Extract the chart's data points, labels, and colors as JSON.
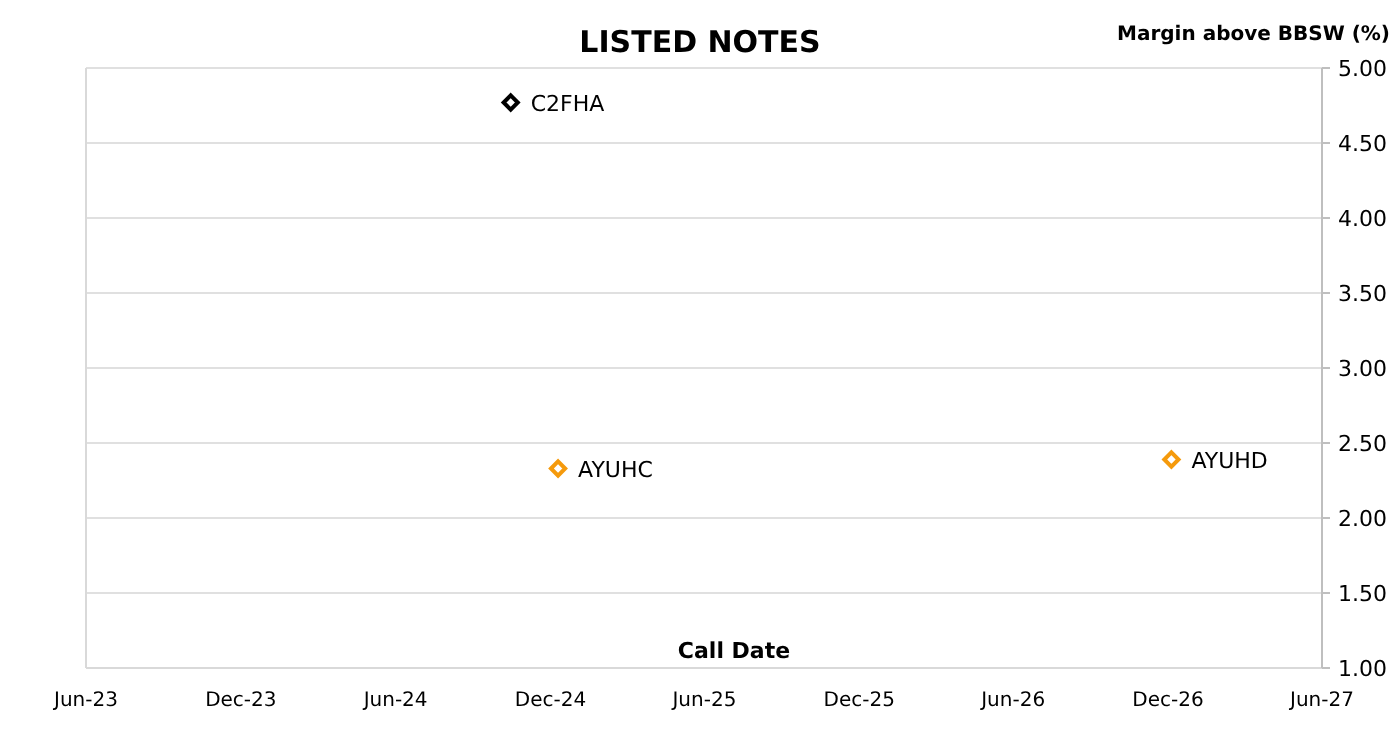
{
  "chart_data": {
    "type": "scatter",
    "title": "LISTED NOTES",
    "xlabel": "Call Date",
    "ylabel": "Margin above BBSW (%)",
    "xlim": [
      "2023-06-01",
      "2027-06-01"
    ],
    "xticks": [
      {
        "value": "2023-06-01",
        "label": "Jun-23"
      },
      {
        "value": "2023-12-01",
        "label": "Dec-23"
      },
      {
        "value": "2024-06-01",
        "label": "Jun-24"
      },
      {
        "value": "2024-12-01",
        "label": "Dec-24"
      },
      {
        "value": "2025-06-01",
        "label": "Jun-25"
      },
      {
        "value": "2025-12-01",
        "label": "Dec-25"
      },
      {
        "value": "2026-06-01",
        "label": "Jun-26"
      },
      {
        "value": "2026-12-01",
        "label": "Dec-26"
      },
      {
        "value": "2027-06-01",
        "label": "Jun-27"
      }
    ],
    "ylim": [
      1,
      5
    ],
    "yticks": [
      {
        "value": 1,
        "label": "1.00"
      },
      {
        "value": 1.5,
        "label": "1.50"
      },
      {
        "value": 2,
        "label": "2.00"
      },
      {
        "value": 2.5,
        "label": "2.50"
      },
      {
        "value": 3,
        "label": "3.00"
      },
      {
        "value": 3.5,
        "label": "3.50"
      },
      {
        "value": 4,
        "label": "4.00"
      },
      {
        "value": 4.5,
        "label": "4.50"
      },
      {
        "value": 5,
        "label": "5.00"
      }
    ],
    "grid": "y",
    "marker": "diamond",
    "series": [
      {
        "name": "C2FHA",
        "color": "#000000",
        "x": [
          "2024-10-15"
        ],
        "values": [
          4.77
        ]
      },
      {
        "name": "AYUHC",
        "color": "#f59a0c",
        "x": [
          "2024-12-10"
        ],
        "values": [
          2.33
        ]
      },
      {
        "name": "AYUHD",
        "color": "#f59a0c",
        "x": [
          "2026-12-05"
        ],
        "values": [
          2.39
        ]
      }
    ]
  }
}
